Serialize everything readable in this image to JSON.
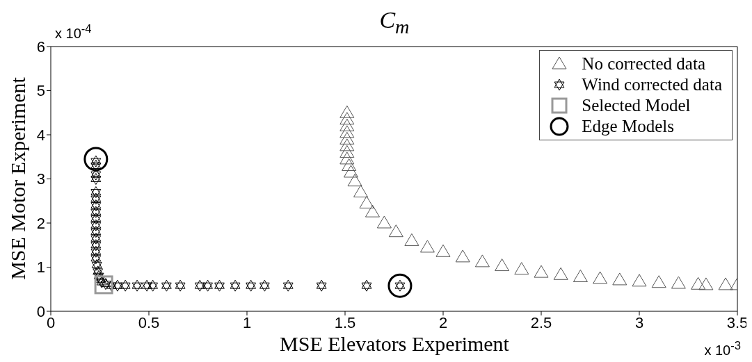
{
  "chart_data": {
    "type": "scatter",
    "title": "C$_{m}$",
    "xlabel": "MSE Elevators Experiment",
    "ylabel": "MSE Motor Experiment",
    "annotations": [
      "x 10$^{-4}$",
      "x 10$^{-3}$"
    ],
    "xlim": [
      0,
      3.5
    ],
    "xticks": [
      0,
      0.5,
      1,
      1.5,
      2,
      2.5,
      3,
      3.5
    ],
    "ylim": [
      0,
      6
    ],
    "yticks": [
      0,
      1,
      2,
      3,
      4,
      5,
      6
    ],
    "grid": false,
    "legend": "top right",
    "series": [
      {
        "name": "No corrected data",
        "color": "#555555",
        "marker": "triangle",
        "x": [
          1.51,
          1.51,
          1.51,
          1.51,
          1.51,
          1.51,
          1.51,
          1.51,
          1.52,
          1.53,
          1.55,
          1.58,
          1.61,
          1.64,
          1.7,
          1.76,
          1.84,
          1.92,
          2.0,
          2.1,
          2.2,
          2.3,
          2.4,
          2.5,
          2.6,
          2.7,
          2.8,
          2.9,
          3.0,
          3.1,
          3.2,
          3.3,
          3.34,
          3.44,
          3.5
        ],
        "values": [
          4.5,
          4.35,
          4.2,
          4.05,
          3.9,
          3.75,
          3.6,
          3.45,
          3.3,
          3.15,
          2.95,
          2.7,
          2.45,
          2.25,
          2.0,
          1.8,
          1.6,
          1.45,
          1.35,
          1.23,
          1.12,
          1.03,
          0.95,
          0.88,
          0.83,
          0.78,
          0.74,
          0.71,
          0.68,
          0.65,
          0.63,
          0.61,
          0.6,
          0.6,
          0.6
        ]
      },
      {
        "name": "Wind corrected data",
        "color": "#000000",
        "marker": "star",
        "x": [
          0.23,
          0.23,
          0.23,
          0.23,
          0.23,
          0.23,
          0.23,
          0.23,
          0.23,
          0.23,
          0.23,
          0.23,
          0.23,
          0.23,
          0.23,
          0.235,
          0.24,
          0.245,
          0.25,
          0.26,
          0.28,
          0.31,
          0.34,
          0.38,
          0.44,
          0.49,
          0.52,
          0.59,
          0.66,
          0.76,
          0.8,
          0.86,
          0.94,
          1.02,
          1.09,
          1.21,
          1.38,
          1.61,
          1.78
        ],
        "values": [
          3.4,
          3.3,
          3.1,
          3.0,
          2.7,
          2.55,
          2.4,
          2.25,
          2.1,
          1.95,
          1.8,
          1.65,
          1.5,
          1.35,
          1.2,
          1.05,
          0.9,
          0.8,
          0.72,
          0.66,
          0.62,
          0.58,
          0.58,
          0.58,
          0.58,
          0.58,
          0.58,
          0.58,
          0.58,
          0.58,
          0.58,
          0.58,
          0.58,
          0.58,
          0.58,
          0.58,
          0.58,
          0.58,
          0.58
        ]
      },
      {
        "name": "Selected Model",
        "color": "#999999",
        "marker": "square",
        "x": [
          0.27
        ],
        "values": [
          0.6
        ]
      },
      {
        "name": "Edge Models",
        "color": "#000000",
        "marker": "circle",
        "x": [
          0.23,
          1.78
        ],
        "values": [
          3.45,
          0.58
        ]
      }
    ]
  }
}
